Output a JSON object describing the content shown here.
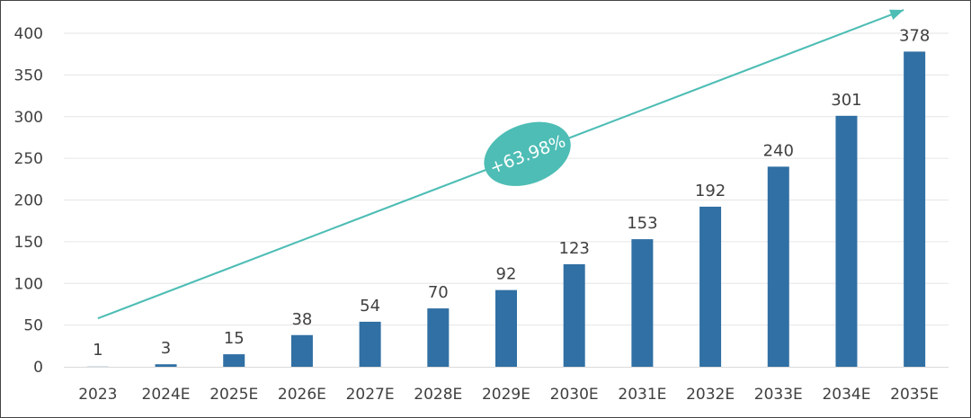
{
  "chart_data": {
    "type": "bar",
    "title": "",
    "xlabel": "",
    "ylabel": "",
    "categories": [
      "2023",
      "2024E",
      "2025E",
      "2026E",
      "2027E",
      "2028E",
      "2029E",
      "2030E",
      "2031E",
      "2032E",
      "2033E",
      "2034E",
      "2035E"
    ],
    "values": [
      1,
      3,
      15,
      38,
      54,
      70,
      92,
      123,
      153,
      192,
      240,
      301,
      378
    ],
    "data_labels": [
      "1",
      "3",
      "15",
      "38",
      "54",
      "70",
      "92",
      "123",
      "153",
      "192",
      "240",
      "301",
      "378"
    ],
    "ylim": [
      0,
      400
    ],
    "yticks": [
      0,
      50,
      100,
      150,
      200,
      250,
      300,
      350,
      400
    ],
    "grid": true,
    "legend": "none",
    "annotation": {
      "text": "+63.98%",
      "kind": "growth-arrow",
      "from_value": 58,
      "to_value": 428
    },
    "colors": {
      "bar": "#3070a4",
      "arrow": "#4dbdb5",
      "badge": "#4dbdb5",
      "grid": "#e6e6e6",
      "text": "#404040"
    }
  }
}
